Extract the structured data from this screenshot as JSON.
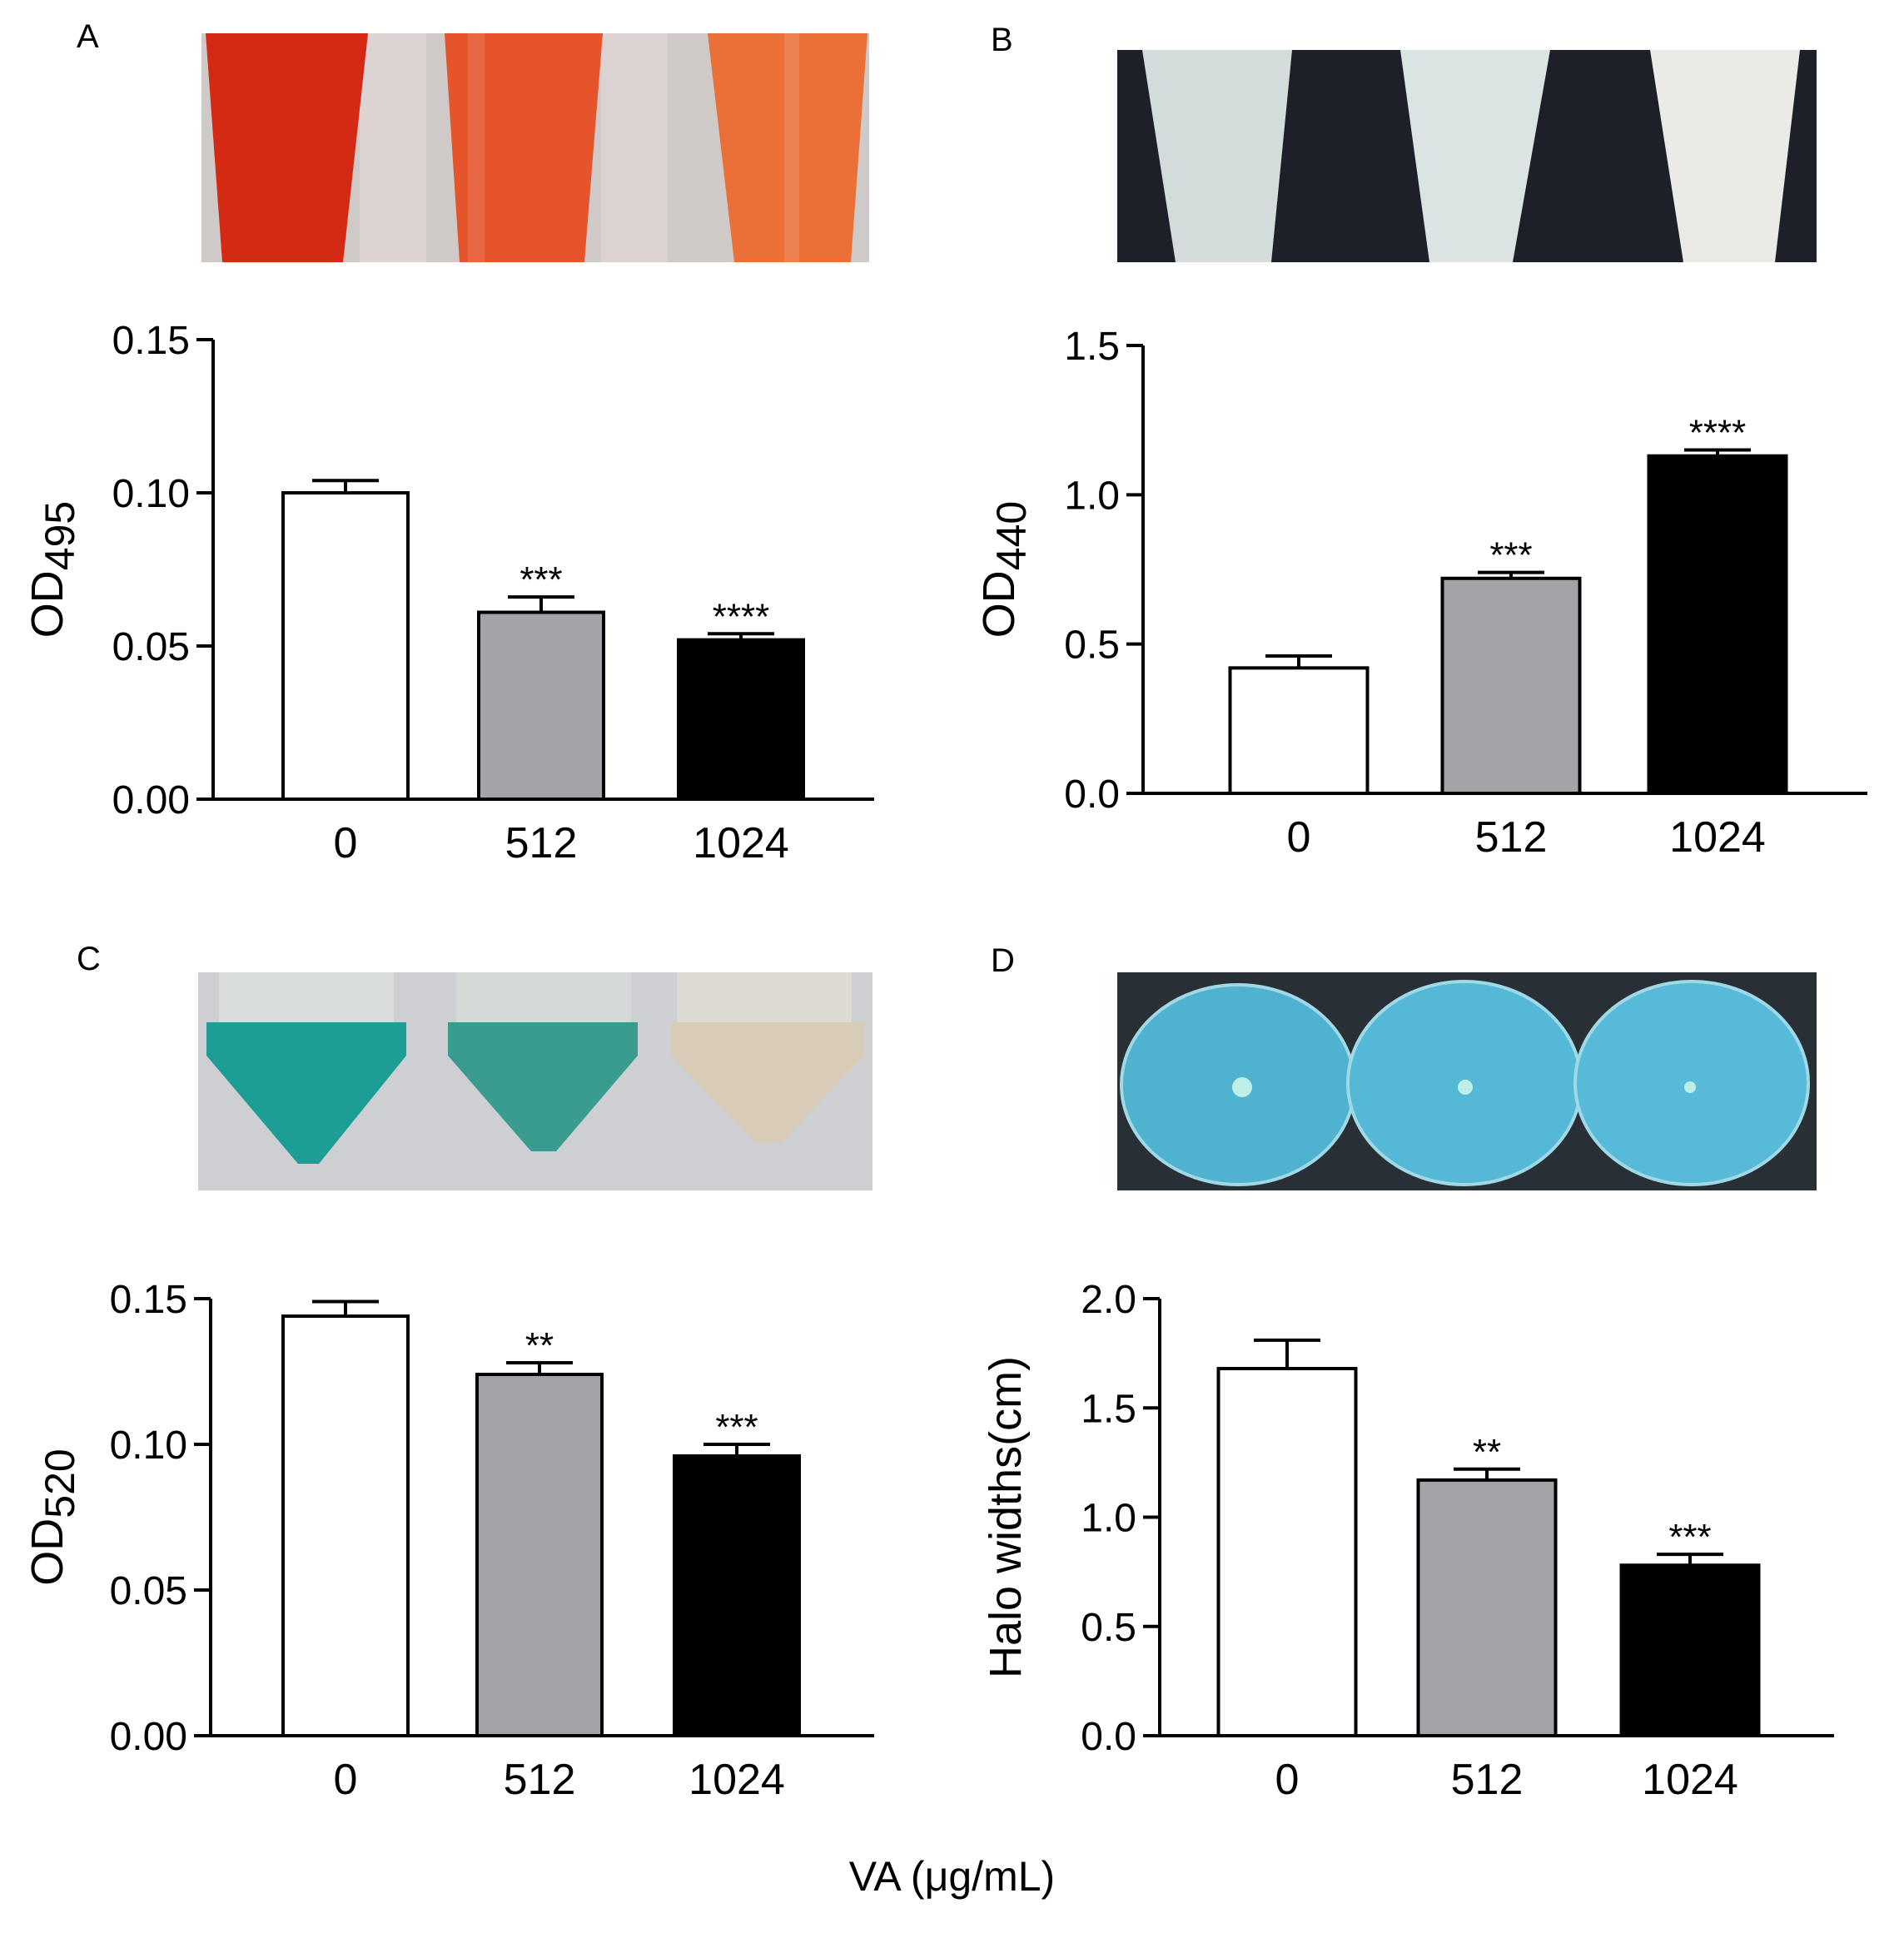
{
  "figure": {
    "x_caption": "VA (μg/mL)",
    "panels": [
      {
        "letter": "A",
        "photo": "red-tubes-photo",
        "photo_colors": [
          "#d42a14",
          "#e5542a",
          "#ea7038"
        ]
      },
      {
        "letter": "B",
        "photo": "white-tubes-photo",
        "photo_colors": [
          "#d3dbdb",
          "#dce3e3",
          "#eceae6"
        ]
      },
      {
        "letter": "C",
        "photo": "blue-green-tubes-photo",
        "photo_colors": [
          "#1c9e97",
          "#3a9c8e",
          "#d8ccb8"
        ]
      },
      {
        "letter": "D",
        "photo": "blue-agar-plates-photo",
        "photo_colors": [
          "#4fb3cf",
          "#55b8d6",
          "#57bad8"
        ]
      }
    ]
  },
  "colors": {
    "bar_0": "#ffffff",
    "bar_512": "#a3a3a8",
    "bar_1024": "#000000",
    "axis": "#000000"
  },
  "chart_data": [
    {
      "type": "bar",
      "categories": [
        "0",
        "512",
        "1024"
      ],
      "values": [
        0.1,
        0.061,
        0.052
      ],
      "errors": [
        0.004,
        0.005,
        0.002
      ],
      "significance": [
        "",
        "***",
        "****"
      ],
      "ylabel": "OD",
      "ylabel_sub": "495",
      "ylim": [
        0,
        0.15
      ],
      "yticks": [
        0,
        0.05,
        0.1,
        0.15
      ],
      "ytick_labels": [
        "0.00",
        "0.05",
        "0.10",
        "0.15"
      ]
    },
    {
      "type": "bar",
      "categories": [
        "0",
        "512",
        "1024"
      ],
      "values": [
        0.42,
        0.72,
        1.13
      ],
      "errors": [
        0.04,
        0.02,
        0.02
      ],
      "significance": [
        "",
        "***",
        "****"
      ],
      "ylabel": "OD",
      "ylabel_sub": "440",
      "ylim": [
        0,
        1.5
      ],
      "yticks": [
        0,
        0.5,
        1.0,
        1.5
      ],
      "ytick_labels": [
        "0.0",
        "0.5",
        "1.0",
        "1.5"
      ]
    },
    {
      "type": "bar",
      "categories": [
        "0",
        "512",
        "1024"
      ],
      "values": [
        0.144,
        0.124,
        0.096
      ],
      "errors": [
        0.005,
        0.004,
        0.004
      ],
      "significance": [
        "",
        "**",
        "***"
      ],
      "ylabel": "OD",
      "ylabel_sub": "520",
      "ylim": [
        0,
        0.15
      ],
      "yticks": [
        0,
        0.05,
        0.1,
        0.15
      ],
      "ytick_labels": [
        "0.00",
        "0.05",
        "0.10",
        "0.15"
      ]
    },
    {
      "type": "bar",
      "categories": [
        "0",
        "512",
        "1024"
      ],
      "values": [
        1.68,
        1.17,
        0.78
      ],
      "errors": [
        0.13,
        0.05,
        0.05
      ],
      "significance": [
        "",
        "**",
        "***"
      ],
      "ylabel": "Halo widths(cm)",
      "ylabel_sub": "",
      "ylim": [
        0,
        2.0
      ],
      "yticks": [
        0,
        0.5,
        1.0,
        1.5,
        2.0
      ],
      "ytick_labels": [
        "0.0",
        "0.5",
        "1.0",
        "1.5",
        "2.0"
      ]
    }
  ]
}
